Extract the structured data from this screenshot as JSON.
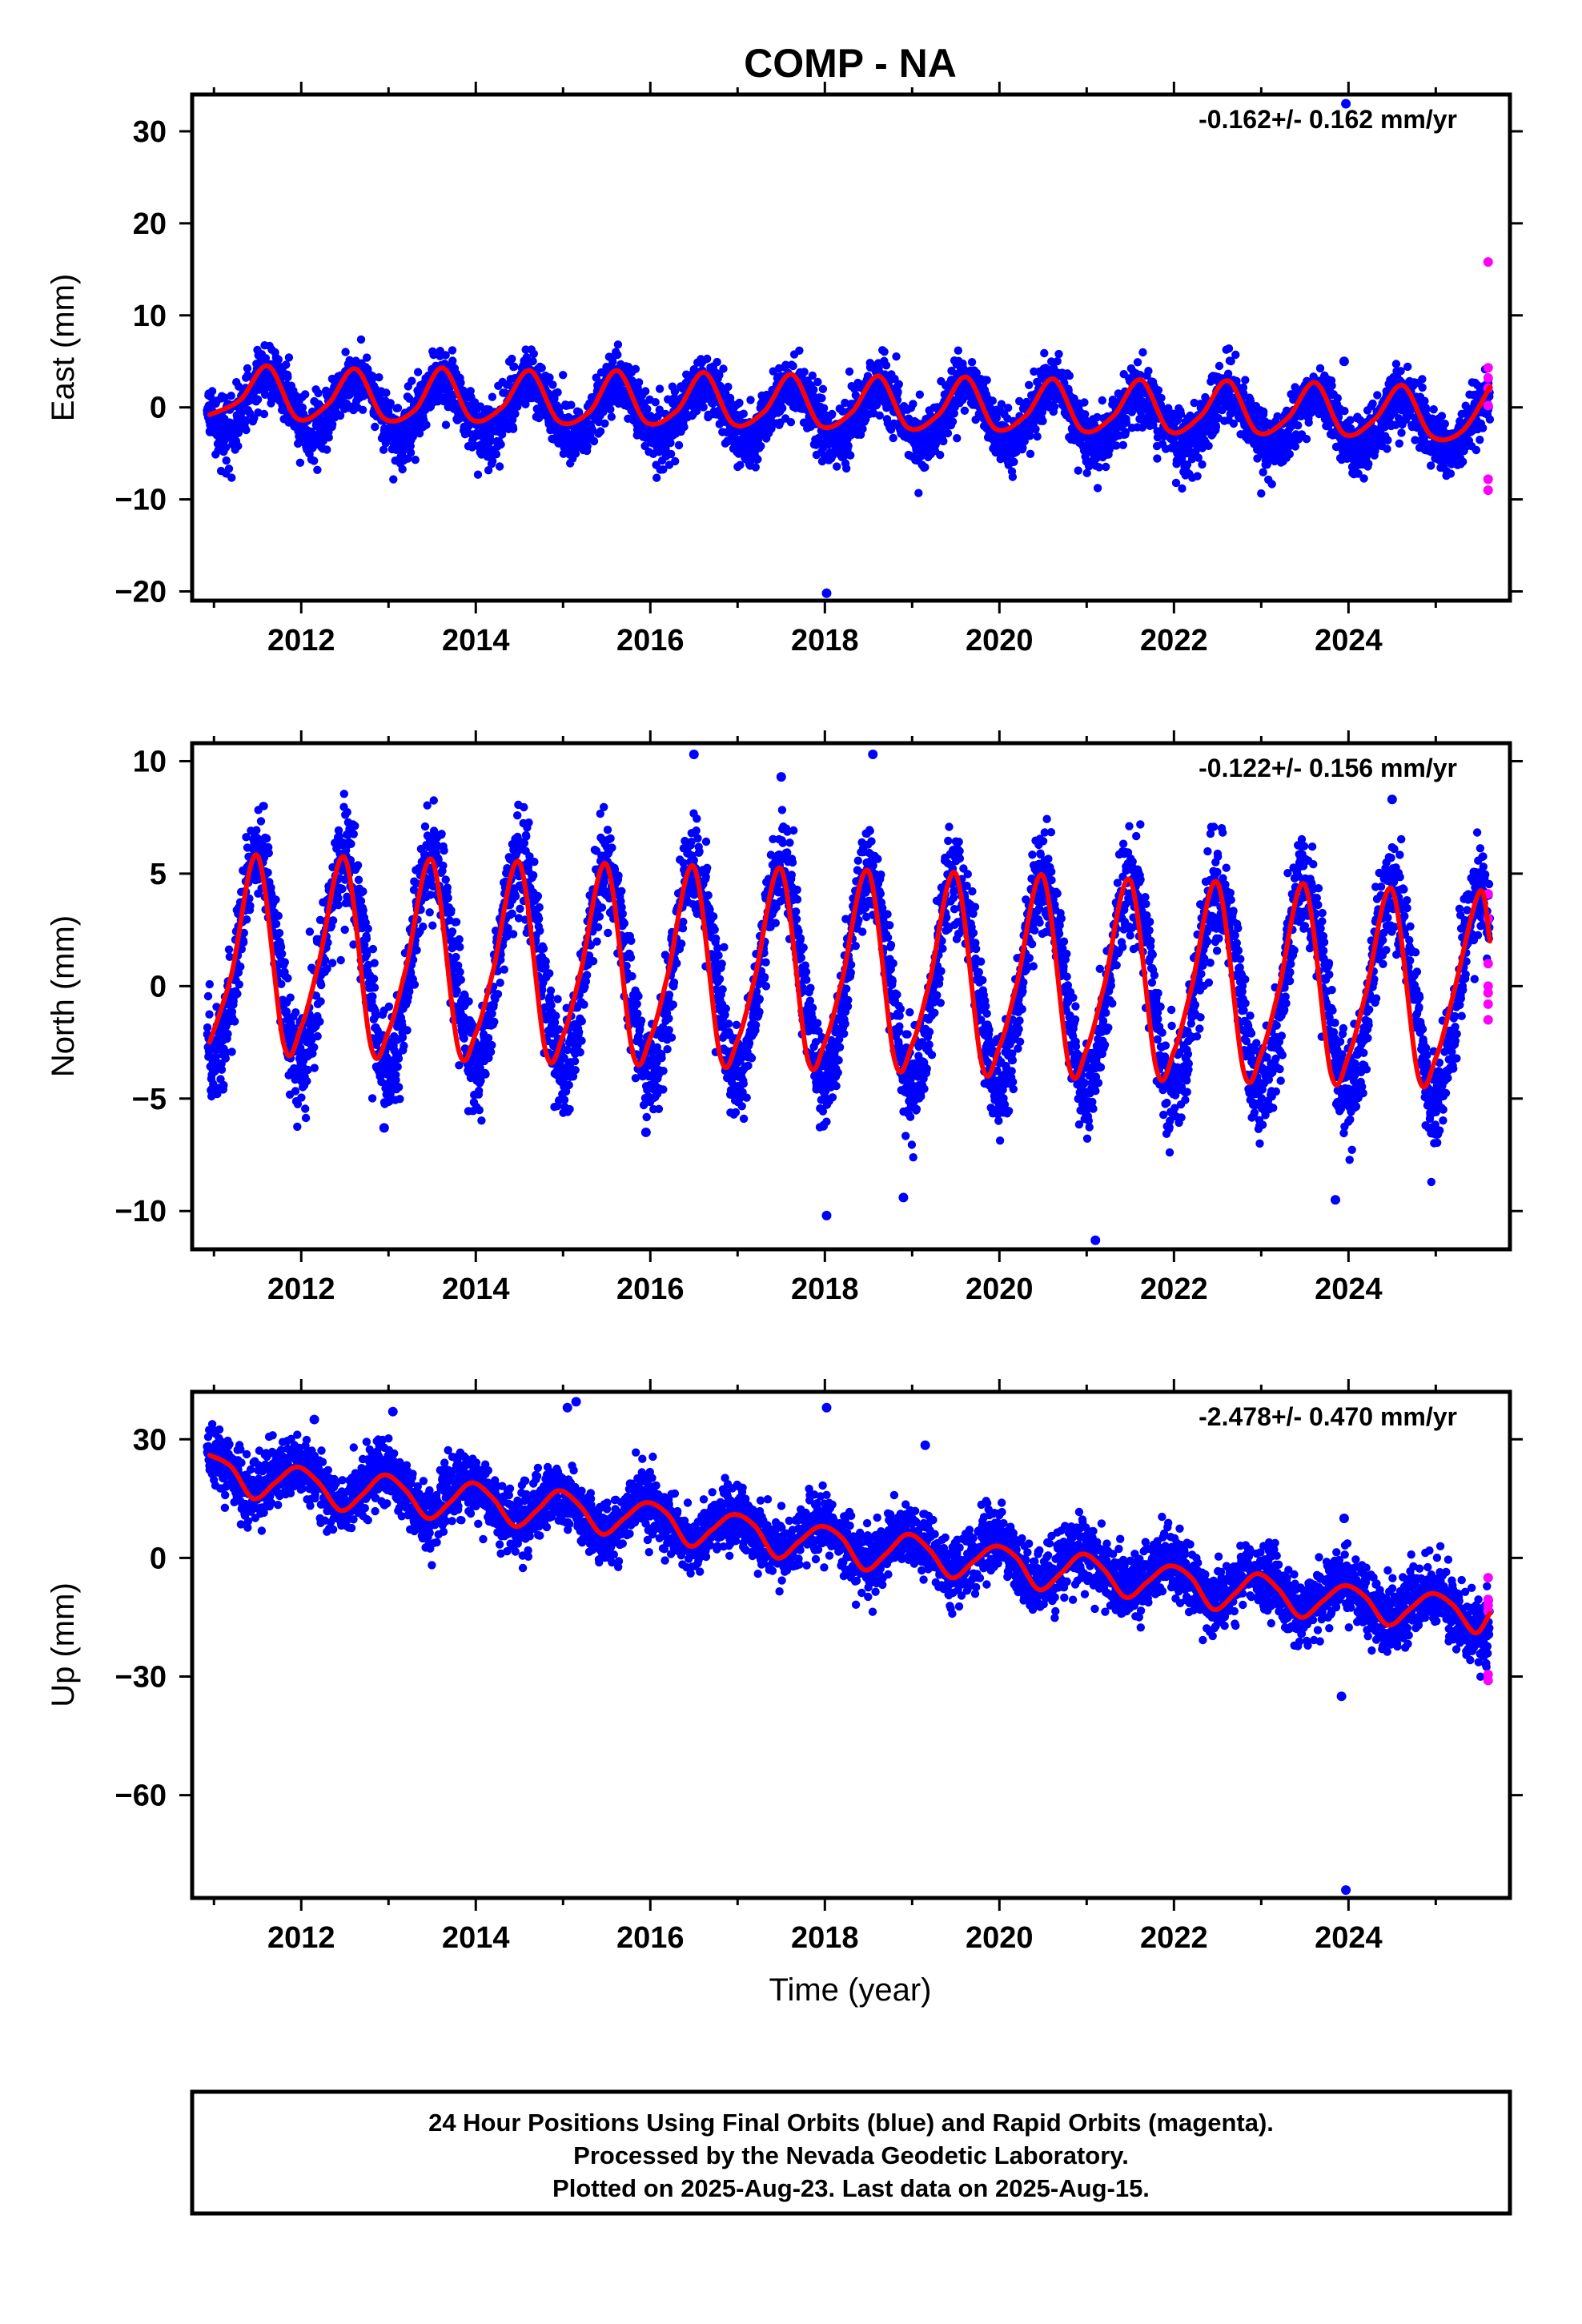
{
  "title": "COMP - NA",
  "xlabel": "Time (year)",
  "colors": {
    "final": "#0000ff",
    "rapid": "#ff00ff",
    "fit": "#ff0000"
  },
  "footer": {
    "line1": "24 Hour Positions Using Final Orbits (blue) and Rapid Orbits (magenta).",
    "line2": "Processed by the Nevada Geodetic Laboratory.",
    "line3": "Plotted on 2025-Aug-23. Last data on 2025-Aug-15."
  },
  "chart_data": [
    {
      "type": "scatter",
      "component": "east",
      "ylabel": "East (mm)",
      "rate": "-0.162+/- 0.162 mm/yr",
      "xlim": [
        2010.75,
        2025.85
      ],
      "ylim": [
        -21,
        34
      ],
      "xticks": [
        2012,
        2014,
        2016,
        2018,
        2020,
        2022,
        2024
      ],
      "yticks": [
        30,
        20,
        10,
        0,
        -10,
        -20
      ],
      "ytick_labels": [
        "30",
        "20",
        "10",
        "0",
        "−10",
        "−20"
      ],
      "start": 2010.92,
      "end": 2025.62,
      "amplitude": 3.0,
      "peak_phase": 0.62,
      "offset": 0.6,
      "slope": -0.162,
      "noise": 1.6,
      "fit": {
        "x": [
          2010.95,
          2011.3,
          2011.62,
          2011.95,
          2012.3,
          2012.62,
          2012.95,
          2013.3,
          2013.62,
          2013.95,
          2014.3,
          2014.62,
          2014.95,
          2015.3,
          2015.62,
          2015.95,
          2016.3,
          2016.62,
          2016.95,
          2017.3,
          2017.62,
          2017.95,
          2018.3,
          2018.62,
          2018.95,
          2019.3,
          2019.62,
          2019.95,
          2020.3,
          2020.62,
          2020.95,
          2021.3,
          2021.62,
          2021.95,
          2022.3,
          2022.62,
          2022.95,
          2023.3,
          2023.62,
          2023.95,
          2024.3,
          2024.62,
          2024.95,
          2025.3,
          2025.62
        ],
        "y": [
          -0.8,
          0.8,
          4.5,
          -1.2,
          0.3,
          4.2,
          -1.2,
          -0.3,
          4.3,
          -1.3,
          0.0,
          4.0,
          -1.5,
          -0.5,
          4.0,
          -1.6,
          -0.4,
          3.8,
          -1.8,
          -0.5,
          3.6,
          -2.0,
          -0.6,
          3.4,
          -2.2,
          -0.8,
          3.3,
          -2.3,
          -0.9,
          3.1,
          -2.5,
          -1.0,
          3.0,
          -2.6,
          -1.0,
          2.9,
          -2.7,
          -1.2,
          2.7,
          -2.9,
          -1.3,
          2.4,
          -3.1,
          -2.6,
          2.2
        ]
      },
      "outliers": [
        {
          "x": 2023.97,
          "y": 33.0
        },
        {
          "x": 2018.02,
          "y": -20.2
        },
        {
          "x": 2023.95,
          "y": 5.0
        }
      ],
      "rapid": [
        {
          "x": 2025.6,
          "y": 15.8
        },
        {
          "x": 2025.6,
          "y": -7.8
        },
        {
          "x": 2025.6,
          "y": -9.0
        },
        {
          "x": 2025.6,
          "y": 4.3
        },
        {
          "x": 2025.6,
          "y": 3.2
        },
        {
          "x": 2025.6,
          "y": 2.1
        },
        {
          "x": 2025.6,
          "y": 0.2
        }
      ]
    },
    {
      "type": "scatter",
      "component": "north",
      "ylabel": "North (mm)",
      "rate": "-0.122+/- 0.156 mm/yr",
      "xlim": [
        2010.75,
        2025.85
      ],
      "ylim": [
        -11.7,
        10.8
      ],
      "xticks": [
        2012,
        2014,
        2016,
        2018,
        2020,
        2022,
        2024
      ],
      "yticks": [
        10,
        5,
        0,
        -5,
        -10
      ],
      "ytick_labels": [
        "10",
        "5",
        "0",
        "−5",
        "−10"
      ],
      "start": 2010.92,
      "end": 2025.62,
      "amplitude": 4.6,
      "peak_phase": 0.5,
      "offset": 1.3,
      "slope": -0.122,
      "noise": 1.1,
      "fit": {
        "x": [
          2010.95,
          2011.2,
          2011.5,
          2011.8,
          2012.0,
          2012.2,
          2012.5,
          2012.8,
          2013.0,
          2013.2,
          2013.5,
          2013.8,
          2014.0,
          2014.2,
          2014.5,
          2014.8,
          2015.0,
          2015.2,
          2015.5,
          2015.8,
          2016.0,
          2016.2,
          2016.5,
          2016.8,
          2017.0,
          2017.2,
          2017.5,
          2017.8,
          2018.0,
          2018.2,
          2018.5,
          2018.8,
          2019.0,
          2019.2,
          2019.5,
          2019.8,
          2020.0,
          2020.2,
          2020.5,
          2020.8,
          2021.0,
          2021.2,
          2021.5,
          2021.8,
          2022.0,
          2022.2,
          2022.5,
          2022.8,
          2023.0,
          2023.2,
          2023.5,
          2023.8,
          2024.0,
          2024.2,
          2024.5,
          2024.8,
          2025.0,
          2025.2,
          2025.5,
          2025.62
        ],
        "y": [
          -2.5,
          0.5,
          5.8,
          -2.6,
          -1.8,
          1.0,
          5.7,
          -2.7,
          -2.0,
          0.8,
          5.6,
          -2.8,
          -2.1,
          0.7,
          5.5,
          -2.9,
          -2.2,
          0.6,
          5.4,
          -3.0,
          -2.3,
          0.5,
          5.3,
          -3.1,
          -2.4,
          0.4,
          5.2,
          -3.2,
          -2.5,
          0.3,
          5.1,
          -3.3,
          -2.6,
          0.2,
          5.0,
          -3.5,
          -2.7,
          0.1,
          4.9,
          -3.6,
          -2.8,
          0.0,
          4.7,
          -3.7,
          -2.9,
          -0.1,
          4.6,
          -3.8,
          -3.0,
          -0.2,
          4.5,
          -3.9,
          -3.1,
          -0.3,
          4.3,
          -4.0,
          -3.2,
          -0.4,
          4.2,
          2.0
        ]
      },
      "outliers": [
        {
          "x": 2016.5,
          "y": 10.3
        },
        {
          "x": 2018.55,
          "y": 10.3
        },
        {
          "x": 2017.5,
          "y": 9.3
        },
        {
          "x": 2018.02,
          "y": -10.2
        },
        {
          "x": 2018.9,
          "y": -9.4
        },
        {
          "x": 2021.1,
          "y": -11.3
        },
        {
          "x": 2023.85,
          "y": -9.5
        },
        {
          "x": 2024.5,
          "y": 8.3
        },
        {
          "x": 2015.95,
          "y": -6.5
        },
        {
          "x": 2012.95,
          "y": -6.3
        }
      ],
      "rapid": [
        {
          "x": 2025.6,
          "y": 4.1
        },
        {
          "x": 2025.6,
          "y": 3.0
        },
        {
          "x": 2025.6,
          "y": 1.0
        },
        {
          "x": 2025.6,
          "y": 0.0
        },
        {
          "x": 2025.6,
          "y": -0.3
        },
        {
          "x": 2025.6,
          "y": -0.8
        },
        {
          "x": 2025.6,
          "y": -1.5
        }
      ]
    },
    {
      "type": "scatter",
      "component": "up",
      "ylabel": "Up (mm)",
      "rate": "-2.478+/- 0.470 mm/yr",
      "xlim": [
        2010.75,
        2025.85
      ],
      "ylim": [
        -86,
        42
      ],
      "xticks": [
        2012,
        2014,
        2016,
        2018,
        2020,
        2022,
        2024
      ],
      "yticks": [
        30,
        0,
        -30,
        -60
      ],
      "ytick_labels": [
        "30",
        "0",
        "−30",
        "−60"
      ],
      "start": 2010.92,
      "end": 2025.62,
      "amplitude": 4.5,
      "peak_phase": 0.95,
      "offset": 22.0,
      "slope": -2.478,
      "noise": 4.0,
      "fit": {
        "x": [
          2010.95,
          2011.2,
          2011.45,
          2011.7,
          2011.95,
          2012.2,
          2012.45,
          2012.7,
          2012.95,
          2013.2,
          2013.45,
          2013.7,
          2013.95,
          2014.2,
          2014.45,
          2014.7,
          2014.95,
          2015.2,
          2015.45,
          2015.7,
          2015.95,
          2016.2,
          2016.45,
          2016.7,
          2016.95,
          2017.2,
          2017.45,
          2017.7,
          2017.95,
          2018.2,
          2018.45,
          2018.7,
          2018.95,
          2019.2,
          2019.45,
          2019.7,
          2019.95,
          2020.2,
          2020.45,
          2020.7,
          2020.95,
          2021.2,
          2021.45,
          2021.7,
          2021.95,
          2022.2,
          2022.45,
          2022.7,
          2022.95,
          2023.2,
          2023.45,
          2023.7,
          2023.95,
          2024.2,
          2024.45,
          2024.7,
          2024.95,
          2025.2,
          2025.45,
          2025.62
        ],
        "y": [
          26,
          23,
          15,
          19,
          23,
          19,
          12,
          16,
          21,
          17,
          10,
          14,
          19,
          15,
          8,
          12,
          17,
          13,
          6,
          10,
          14,
          11,
          3,
          7,
          11,
          8,
          0,
          4,
          8,
          5,
          -3,
          1,
          6,
          2,
          -5,
          -1,
          3,
          0,
          -8,
          -4,
          1,
          -3,
          -10,
          -6,
          -2,
          -5,
          -13,
          -9,
          -4,
          -8,
          -15,
          -11,
          -7,
          -10,
          -17,
          -13,
          -9,
          -12,
          -19,
          -14
        ]
      },
      "outliers": [
        {
          "x": 2013.05,
          "y": 37.0
        },
        {
          "x": 2015.05,
          "y": 38.0
        },
        {
          "x": 2015.15,
          "y": 39.5
        },
        {
          "x": 2018.02,
          "y": 38.0
        },
        {
          "x": 2019.15,
          "y": 28.5
        },
        {
          "x": 2012.15,
          "y": 35.0
        },
        {
          "x": 2023.92,
          "y": -35.0
        },
        {
          "x": 2023.97,
          "y": -84.0
        },
        {
          "x": 2023.95,
          "y": 10.0
        }
      ],
      "rapid": [
        {
          "x": 2025.6,
          "y": -5.0
        },
        {
          "x": 2025.6,
          "y": -10.5
        },
        {
          "x": 2025.6,
          "y": -12.0
        },
        {
          "x": 2025.6,
          "y": -13.5
        },
        {
          "x": 2025.6,
          "y": -29.5
        },
        {
          "x": 2025.6,
          "y": -31.0
        }
      ]
    }
  ]
}
